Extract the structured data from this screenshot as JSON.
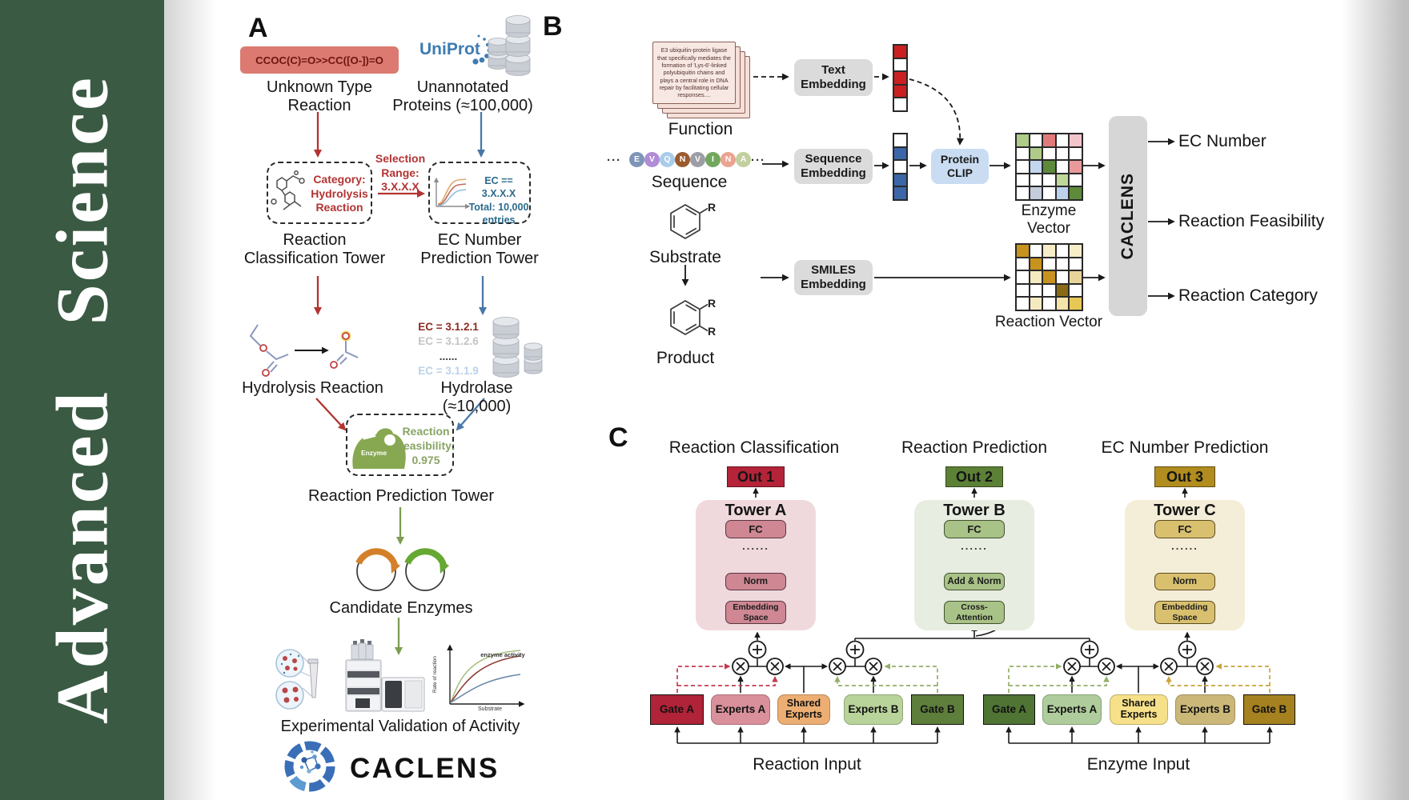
{
  "banner": {
    "title": "Advanced Science",
    "bg_color": "#3A5A43"
  },
  "panel_a": {
    "label": "A",
    "smiles": "CCOC(C)=O>>CC([O-])=O",
    "unknown_reaction": "Unknown Type\nReaction",
    "uniprot": "UniProt",
    "unannotated": "Unannotated\nProteins (≈100,000)",
    "category_box": "Category:\nHydrolysis\nReaction",
    "selection": "Selection\nRange:\n3.X.X.X",
    "ec_box": "EC == 3.X.X.X\nTotal: 10,000\nentries",
    "classification_tower": "Reaction\nClassification Tower",
    "prediction_tower": "EC Number\nPrediction Tower",
    "ec_list": [
      {
        "text": "EC = 3.1.2.1",
        "color": "#8C2B21"
      },
      {
        "text": "EC = 3.1.2.6",
        "color": "#C4C4C4"
      },
      {
        "text": "......",
        "color": "#3A3A3A"
      },
      {
        "text": "EC = 3.1.1.9",
        "color": "#BAD2E8"
      }
    ],
    "hydrolysis_reaction": "Hydrolysis Reaction",
    "hydrolase": "Hydrolase (≈10,000)",
    "enzyme": "Enzyme",
    "feasibility": "Reaction\nFeasibility:\n0.975",
    "reaction_prediction_tower": "Reaction Prediction Tower",
    "candidate_enzymes": "Candidate Enzymes",
    "plot": {
      "ylabel": "Rate of reaction",
      "xlabel": "Substrate",
      "annotation": "enzyme activity"
    },
    "validation": "Experimental Validation of Activity",
    "logo": "CACLENS"
  },
  "panel_b": {
    "label": "B",
    "function_text": "E3 ubiquitin-protein ligase that specifically mediates the formation of 'Lys-6'-linked polyubiquitin chains and plays a central role in DNA repair by facilitating cellular responses....",
    "function_label": "Function",
    "ellipsis": "···",
    "residues": [
      {
        "letter": "E",
        "color": "#7E95B7"
      },
      {
        "letter": "V",
        "color": "#B08BD6"
      },
      {
        "letter": "Q",
        "color": "#A9CCE9"
      },
      {
        "letter": "N",
        "color": "#9B5B2E"
      },
      {
        "letter": "V",
        "color": "#9D9DA5"
      },
      {
        "letter": "I",
        "color": "#72A85E"
      },
      {
        "letter": "N",
        "color": "#EBA38F"
      },
      {
        "letter": "A",
        "color": "#C2CF9F"
      }
    ],
    "sequence_label": "Sequence",
    "substrate_label": "Substrate",
    "product_label": "Product",
    "r_group": "R",
    "text_embedding": "Text\nEmbedding",
    "sequence_embedding": "Sequence\nEmbedding",
    "smiles_embedding": "SMILES\nEmbedding",
    "protein_clip": "Protein\nCLIP",
    "text_vector_cells": [
      "#CC1F1F",
      "#FFFFFF",
      "#CC1F1F",
      "#CC1F1F",
      "#FFFFFF"
    ],
    "sequence_vector_cells": [
      "#FFFFFF",
      "#3B66A8",
      "#FFFFFF",
      "#3B66A8",
      "#3B66A8"
    ],
    "enzyme_vector": {
      "label": "Enzyme Vector",
      "cells": [
        [
          "#AECB87",
          "#FFFFFF",
          "#E07B7B",
          "#FFFFFF",
          "#F2C4CC"
        ],
        [
          "#FFFFFF",
          "#AECB87",
          "#FFFFFF",
          "#FFFFFF",
          "#FFFFFF"
        ],
        [
          "#FFFFFF",
          "#C3D7EE",
          "#5E8A3C",
          "#FFFFFF",
          "#E89A9A"
        ],
        [
          "#FFFFFF",
          "#FFFFFF",
          "#FFFFFF",
          "#BFD89A",
          "#FFFFFF"
        ],
        [
          "#FFFFFF",
          "#C3CDDC",
          "#FFFFFF",
          "#BCD2EC",
          "#5E8A3C"
        ]
      ]
    },
    "reaction_vector": {
      "label": "Reaction Vector",
      "cells": [
        [
          "#C8921E",
          "#FFFFFF",
          "#F7EDC8",
          "#FFFFFF",
          "#F7EDC8"
        ],
        [
          "#FFFFFF",
          "#C8921E",
          "#FFFFFF",
          "#FFFFFF",
          "#FFFFFF"
        ],
        [
          "#FFFFFF",
          "#F5E9C0",
          "#C8921E",
          "#FFFFFF",
          "#E8D49A"
        ],
        [
          "#FFFFFF",
          "#FFFFFF",
          "#FFFFFF",
          "#8A6A14",
          "#FFFFFF"
        ],
        [
          "#FFFFFF",
          "#F5E9C0",
          "#FFFFFF",
          "#F2E4A8",
          "#E8C855"
        ]
      ]
    },
    "caclens": "CACLENS",
    "outputs": [
      "EC Number",
      "Reaction Feasibility",
      "Reaction Category"
    ]
  },
  "panel_c": {
    "label": "C",
    "columns": [
      {
        "title": "Reaction Classification",
        "out": "Out 1",
        "tower": "Tower A",
        "fc": "FC",
        "dots": "......",
        "mid": "Norm",
        "bottom": "Embedding\nSpace"
      },
      {
        "title": "Reaction Prediction",
        "out": "Out 2",
        "tower": "Tower B",
        "fc": "FC",
        "dots": "......",
        "mid": "Add & Norm",
        "bottom": "Cross-\nAttention"
      },
      {
        "title": "EC Number Prediction",
        "out": "Out 3",
        "tower": "Tower C",
        "fc": "FC",
        "dots": "......",
        "mid": "Norm",
        "bottom": "Embedding\nSpace"
      }
    ],
    "moe_left": {
      "gate_a": "Gate A",
      "experts_a": "Experts A",
      "shared": "Shared\nExperts",
      "experts_b": "Experts B",
      "gate_b": "Gate B",
      "input": "Reaction Input"
    },
    "moe_right": {
      "gate_a": "Gate A",
      "experts_a": "Experts A",
      "shared": "Shared\nExperts",
      "experts_b": "Experts B",
      "gate_b": "Gate B",
      "input": "Enzyme Input"
    }
  }
}
